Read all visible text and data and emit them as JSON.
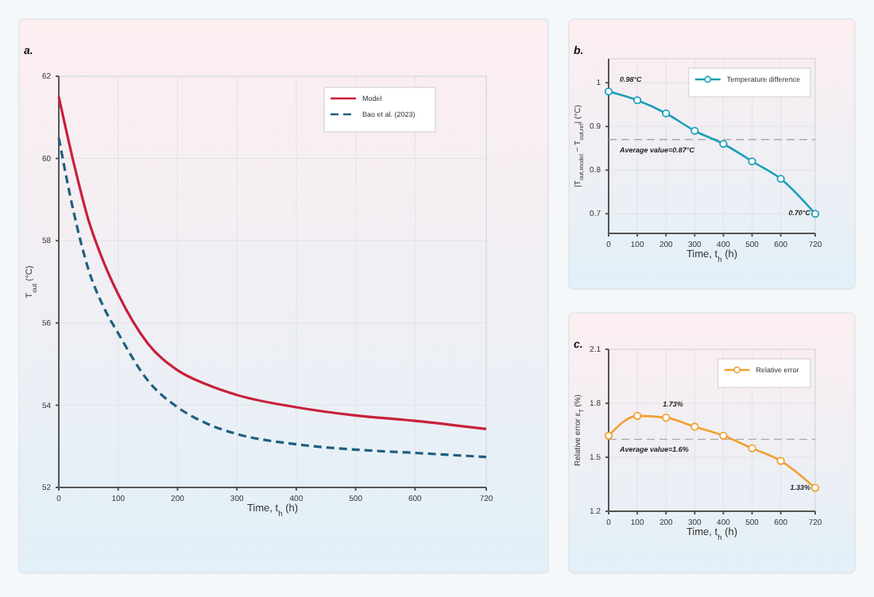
{
  "chart_data": [
    {
      "type": "line",
      "title": "a.",
      "xlabel": "Time, t$_{h}$ (h)",
      "ylabel": "T$_{out}$ (°C)",
      "xlim": [
        0,
        720
      ],
      "xticks": [
        0,
        100,
        200,
        300,
        400,
        500,
        600,
        720
      ],
      "ylim": [
        52,
        62
      ],
      "yticks": [
        52,
        54,
        56,
        58,
        60,
        62
      ],
      "grid": true,
      "legend": "top right",
      "marker": "none",
      "series": [
        {
          "name": "Model",
          "color": "#c8203a",
          "line_style": "solid",
          "x": [
            0,
            25,
            50,
            75,
            100,
            150,
            200,
            250,
            300,
            400,
            500,
            600,
            720
          ],
          "values": [
            61.5,
            59.9,
            58.5,
            57.5,
            56.7,
            55.5,
            54.85,
            54.5,
            54.25,
            53.95,
            53.75,
            53.62,
            53.42
          ]
        },
        {
          "name": "Bao et al. (2023)",
          "color": "#1f5f7f",
          "line_style": "dashed",
          "x": [
            0,
            25,
            50,
            75,
            100,
            150,
            200,
            250,
            300,
            400,
            500,
            600,
            720
          ],
          "values": [
            60.5,
            58.7,
            57.3,
            56.4,
            55.75,
            54.6,
            53.95,
            53.55,
            53.3,
            53.05,
            52.92,
            52.84,
            52.74
          ]
        }
      ]
    },
    {
      "type": "line",
      "title": "b.",
      "xlabel": "Time, t$_{h}$ (h)",
      "ylabel": "|T$_{out,model}$ − T$_{out,ref}$| (°C)",
      "xlim": [
        0,
        720
      ],
      "xticks": [
        0,
        100,
        200,
        300,
        400,
        500,
        600,
        720
      ],
      "ylim": [
        0.655,
        1.055
      ],
      "yticks": [
        0.7,
        0.8,
        0.9,
        1
      ],
      "grid": true,
      "legend": "top right",
      "marker": "circle",
      "series": [
        {
          "name": "Temperature difference",
          "color": "#1aa0b8",
          "x": [
            0,
            100,
            200,
            300,
            400,
            500,
            600,
            720
          ],
          "values": [
            0.98,
            0.96,
            0.93,
            0.89,
            0.86,
            0.82,
            0.78,
            0.7
          ]
        }
      ],
      "ref_lines": [
        {
          "axis": "y",
          "value": 0.87,
          "label": "Average value=0.87°C",
          "color": "#aaaaaa",
          "line_style": "dashed"
        }
      ],
      "annotations": [
        {
          "text": "0.98°C",
          "x": 0,
          "y": 0.98
        },
        {
          "text": "0.70°C",
          "x": 720,
          "y": 0.7
        }
      ]
    },
    {
      "type": "line",
      "title": "c.",
      "xlabel": "Time, t$_{h}$ (h)",
      "ylabel": "Relative error ε$_{T}$ (%)",
      "xlim": [
        0,
        720
      ],
      "xticks": [
        0,
        100,
        200,
        300,
        400,
        500,
        600,
        720
      ],
      "ylim": [
        1.2,
        2.1
      ],
      "yticks": [
        1.2,
        1.5,
        1.8,
        2.1
      ],
      "grid": true,
      "legend": "top right",
      "marker": "circle",
      "series": [
        {
          "name": "Relative error",
          "color": "#f0a030",
          "x": [
            0,
            100,
            200,
            300,
            400,
            500,
            600,
            720
          ],
          "values": [
            1.62,
            1.73,
            1.72,
            1.67,
            1.62,
            1.55,
            1.48,
            1.33
          ]
        }
      ],
      "ref_lines": [
        {
          "axis": "y",
          "value": 1.6,
          "label": "Average value=1.6%",
          "color": "#aaaaaa",
          "line_style": "dashed"
        }
      ],
      "annotations": [
        {
          "text": "1.73%",
          "x": 150,
          "y": 1.73
        },
        {
          "text": "1.33%",
          "x": 720,
          "y": 1.33
        }
      ]
    }
  ]
}
